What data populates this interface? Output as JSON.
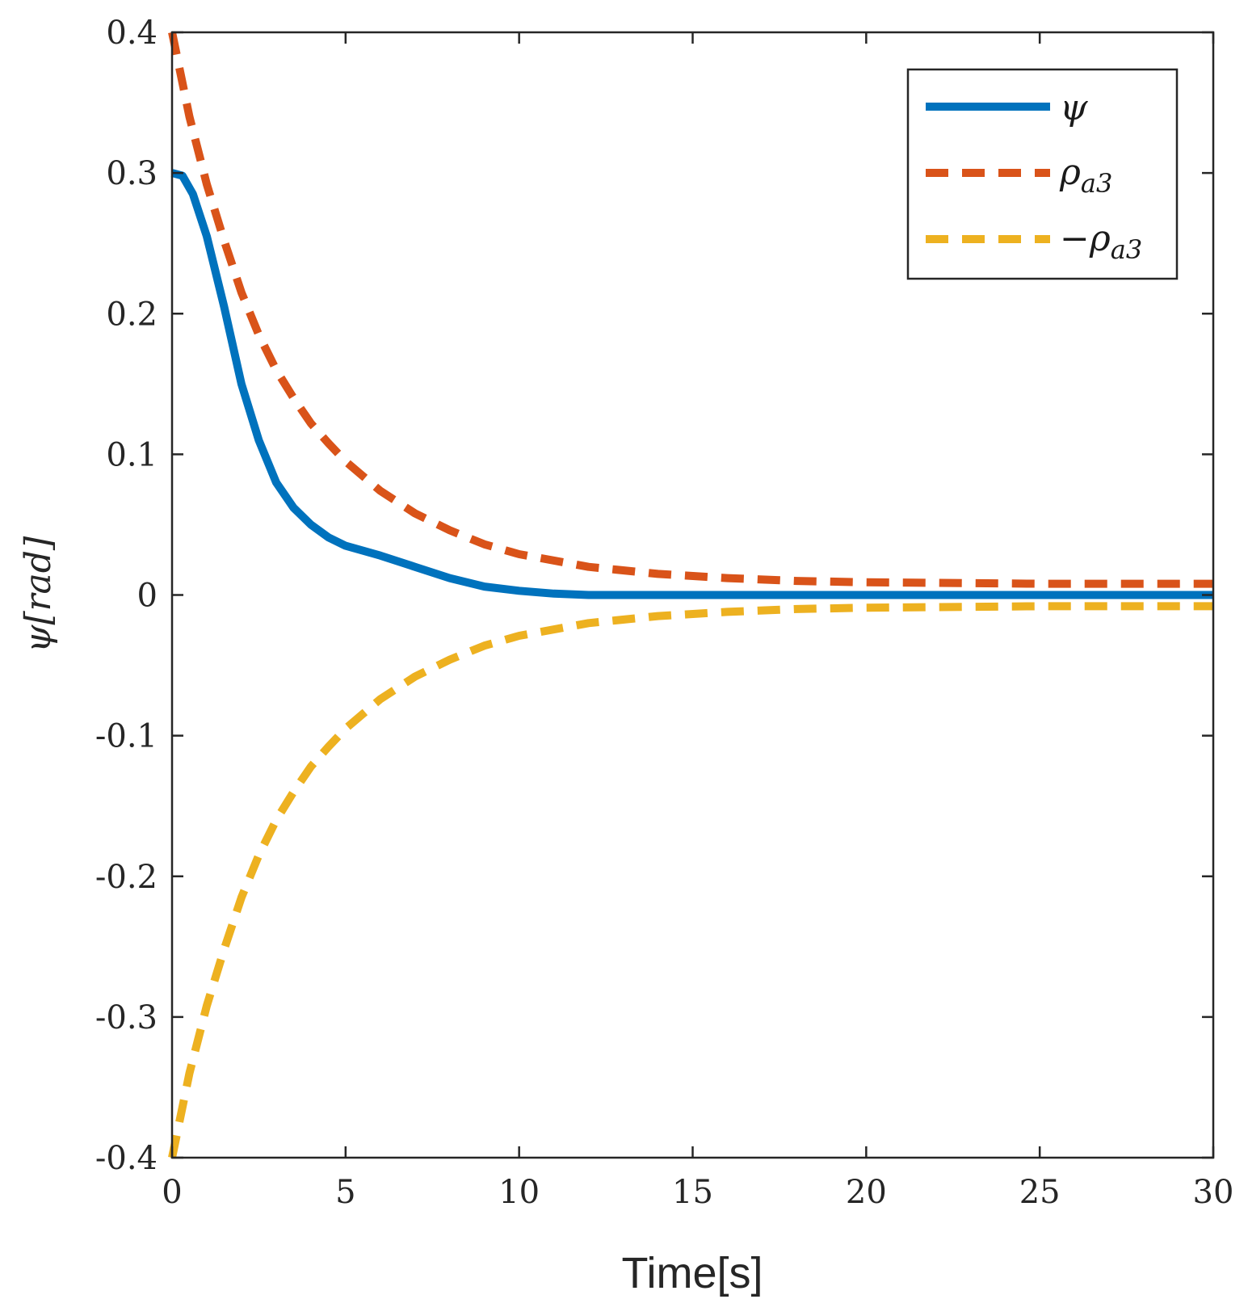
{
  "chart_data": {
    "type": "line",
    "title": "",
    "xlabel": "Time[s]",
    "ylabel": "ψ[rad]",
    "xlim": [
      0,
      30
    ],
    "ylim": [
      -0.4,
      0.4
    ],
    "xticks": [
      0,
      5,
      10,
      15,
      20,
      25,
      30
    ],
    "xtick_labels": [
      "0",
      "5",
      "10",
      "15",
      "20",
      "25",
      "30"
    ],
    "yticks": [
      -0.4,
      -0.3,
      -0.2,
      -0.1,
      0,
      0.1,
      0.2,
      0.3,
      0.4
    ],
    "ytick_labels": [
      "-0.4",
      "-0.3",
      "-0.2",
      "-0.1",
      "0",
      "0.1",
      "0.2",
      "0.3",
      "0.4"
    ],
    "grid": false,
    "legend_position": "top-right",
    "series": [
      {
        "name": "ψ",
        "color": "#0072BD",
        "style": "solid",
        "x": [
          0,
          0.3,
          0.6,
          1,
          1.5,
          2,
          2.5,
          3,
          3.5,
          4,
          4.5,
          5,
          6,
          7,
          8,
          9,
          10,
          11,
          12,
          13,
          15,
          20,
          25,
          30
        ],
        "y": [
          0.3,
          0.298,
          0.285,
          0.255,
          0.205,
          0.15,
          0.11,
          0.08,
          0.062,
          0.05,
          0.041,
          0.035,
          0.028,
          0.02,
          0.012,
          0.006,
          0.003,
          0.001,
          0.0,
          0.0,
          0.0,
          0.0,
          0.0,
          0.0
        ]
      },
      {
        "name": "ρ_a3",
        "color": "#D95319",
        "style": "dashed",
        "x": [
          0,
          0.5,
          1,
          1.5,
          2,
          2.5,
          3,
          3.5,
          4,
          4.5,
          5,
          6,
          7,
          8,
          9,
          10,
          12,
          14,
          16,
          18,
          20,
          25,
          30
        ],
        "y": [
          0.4,
          0.34,
          0.292,
          0.252,
          0.215,
          0.185,
          0.16,
          0.14,
          0.122,
          0.108,
          0.095,
          0.074,
          0.058,
          0.046,
          0.036,
          0.029,
          0.02,
          0.015,
          0.012,
          0.01,
          0.009,
          0.008,
          0.008
        ]
      },
      {
        "name": "−ρ_a3",
        "color": "#EDB120",
        "style": "dashed",
        "x": [
          0,
          0.5,
          1,
          1.5,
          2,
          2.5,
          3,
          3.5,
          4,
          4.5,
          5,
          6,
          7,
          8,
          9,
          10,
          12,
          14,
          16,
          18,
          20,
          25,
          30
        ],
        "y": [
          -0.4,
          -0.34,
          -0.292,
          -0.252,
          -0.215,
          -0.185,
          -0.16,
          -0.14,
          -0.122,
          -0.108,
          -0.095,
          -0.074,
          -0.058,
          -0.046,
          -0.036,
          -0.029,
          -0.02,
          -0.015,
          -0.012,
          -0.01,
          -0.009,
          -0.008,
          -0.008
        ]
      }
    ]
  }
}
